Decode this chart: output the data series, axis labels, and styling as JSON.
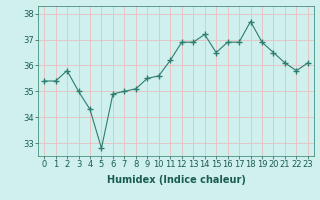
{
  "x": [
    0,
    1,
    2,
    3,
    4,
    5,
    6,
    7,
    8,
    9,
    10,
    11,
    12,
    13,
    14,
    15,
    16,
    17,
    18,
    19,
    20,
    21,
    22,
    23
  ],
  "y": [
    35.4,
    35.4,
    35.8,
    35.0,
    34.3,
    32.8,
    34.9,
    35.0,
    35.1,
    35.5,
    35.6,
    36.2,
    36.9,
    36.9,
    37.2,
    36.5,
    36.9,
    36.9,
    37.7,
    36.9,
    36.5,
    36.1,
    35.8,
    36.1
  ],
  "xlabel": "Humidex (Indice chaleur)",
  "line_color": "#2e7d6e",
  "marker": "+",
  "markersize": 4,
  "bg_color": "#cff0ec",
  "grid_color": "#e8c0c0",
  "xlim": [
    -0.5,
    23.5
  ],
  "ylim": [
    32.5,
    38.3
  ],
  "yticks": [
    33,
    34,
    35,
    36,
    37,
    38
  ],
  "xticks": [
    0,
    1,
    2,
    3,
    4,
    5,
    6,
    7,
    8,
    9,
    10,
    11,
    12,
    13,
    14,
    15,
    16,
    17,
    18,
    19,
    20,
    21,
    22,
    23
  ],
  "xlabel_fontsize": 7,
  "tick_fontsize": 6
}
